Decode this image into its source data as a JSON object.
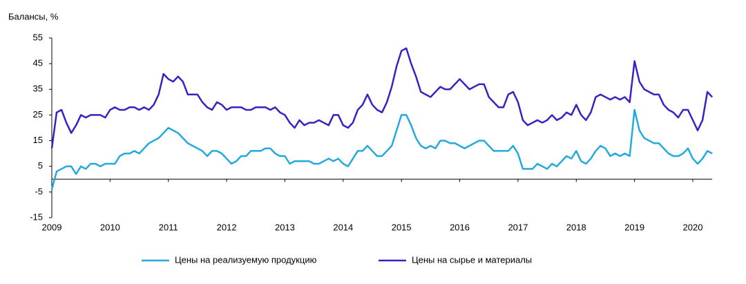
{
  "chart_data": {
    "type": "line",
    "y_label": "Балансы, %",
    "categories": [
      "2009",
      null,
      null,
      null,
      null,
      null,
      null,
      null,
      null,
      null,
      null,
      null,
      "2010",
      null,
      null,
      null,
      null,
      null,
      null,
      null,
      null,
      null,
      null,
      null,
      "2011",
      null,
      null,
      null,
      null,
      null,
      null,
      null,
      null,
      null,
      null,
      null,
      "2012",
      null,
      null,
      null,
      null,
      null,
      null,
      null,
      null,
      null,
      null,
      null,
      "2013",
      null,
      null,
      null,
      null,
      null,
      null,
      null,
      null,
      null,
      null,
      null,
      "2014",
      null,
      null,
      null,
      null,
      null,
      null,
      null,
      null,
      null,
      null,
      null,
      "2015",
      null,
      null,
      null,
      null,
      null,
      null,
      null,
      null,
      null,
      null,
      null,
      "2016",
      null,
      null,
      null,
      null,
      null,
      null,
      null,
      null,
      null,
      null,
      null,
      "2017",
      null,
      null,
      null,
      null,
      null,
      null,
      null,
      null,
      null,
      null,
      null,
      "2018",
      null,
      null,
      null,
      null,
      null,
      null,
      null,
      null,
      null,
      null,
      null,
      "2019",
      null,
      null,
      null,
      null,
      null,
      null,
      null,
      null,
      null,
      null,
      null,
      "2020",
      null,
      null,
      null,
      null
    ],
    "series": [
      {
        "name": "Цены на реализуемую продукцию",
        "color": "#22a9de",
        "values": [
          -4,
          3,
          4,
          5,
          5,
          2,
          5,
          4,
          6,
          6,
          5,
          6,
          6,
          6,
          9,
          10,
          10,
          11,
          10,
          12,
          14,
          15,
          16,
          18,
          20,
          19,
          18,
          16,
          14,
          13,
          12,
          11,
          9,
          11,
          11,
          10,
          8,
          6,
          7,
          9,
          9,
          11,
          11,
          11,
          12,
          12,
          10,
          9,
          9,
          6,
          7,
          7,
          7,
          7,
          6,
          6,
          7,
          8,
          7,
          8,
          6,
          5,
          8,
          11,
          11,
          13,
          11,
          9,
          9,
          11,
          13,
          19,
          25,
          25,
          21,
          16,
          13,
          12,
          13,
          12,
          15,
          15,
          14,
          14,
          13,
          12,
          13,
          14,
          15,
          15,
          13,
          11,
          11,
          11,
          11,
          13,
          10,
          4,
          4,
          4,
          6,
          5,
          4,
          6,
          5,
          7,
          9,
          8,
          11,
          7,
          6,
          8,
          11,
          13,
          12,
          9,
          10,
          9,
          10,
          9,
          27,
          19,
          16,
          15,
          14,
          14,
          12,
          10,
          9,
          9,
          10,
          12,
          8,
          6,
          8,
          11,
          10
        ]
      },
      {
        "name": "Цены на сырье и материалы",
        "color": "#3b1fc2",
        "values": [
          12,
          26,
          27,
          22,
          18,
          21,
          25,
          24,
          25,
          25,
          25,
          24,
          27,
          28,
          27,
          27,
          28,
          28,
          27,
          28,
          27,
          29,
          33,
          41,
          39,
          38,
          40,
          38,
          33,
          33,
          33,
          30,
          28,
          27,
          30,
          29,
          27,
          28,
          28,
          28,
          27,
          27,
          28,
          28,
          28,
          27,
          28,
          26,
          25,
          22,
          20,
          23,
          21,
          22,
          22,
          23,
          22,
          21,
          25,
          25,
          21,
          20,
          22,
          27,
          29,
          33,
          29,
          27,
          26,
          30,
          36,
          44,
          50,
          51,
          45,
          40,
          34,
          33,
          32,
          34,
          36,
          35,
          35,
          37,
          39,
          37,
          35,
          36,
          37,
          37,
          32,
          30,
          28,
          28,
          33,
          34,
          30,
          23,
          21,
          22,
          23,
          22,
          23,
          25,
          23,
          24,
          26,
          25,
          29,
          25,
          23,
          26,
          32,
          33,
          32,
          31,
          32,
          31,
          32,
          30,
          46,
          38,
          35,
          34,
          33,
          33,
          29,
          27,
          26,
          24,
          27,
          27,
          23,
          19,
          23,
          34,
          32
        ]
      }
    ],
    "ylim": [
      -15,
      55
    ],
    "yticks": [
      -15,
      -5,
      5,
      15,
      25,
      35,
      45,
      55
    ],
    "grid": false
  }
}
